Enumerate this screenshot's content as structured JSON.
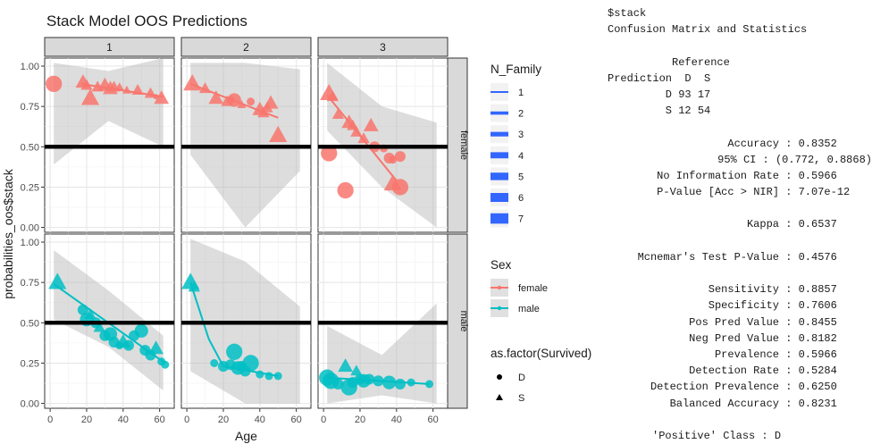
{
  "chart_data": {
    "type": "scatter",
    "title": "Stack Model OOS Predictions",
    "xlabel": "Age",
    "ylabel": "probabilities_oos$stack",
    "xlim": [
      -3,
      68
    ],
    "ylim": [
      -0.03,
      1.05
    ],
    "x_ticks": [
      0,
      20,
      40,
      60
    ],
    "y_ticks": [
      0,
      0.25,
      0.5,
      0.75,
      1.0
    ],
    "y_tick_labels": [
      "0.00",
      "0.25",
      "0.50",
      "0.75",
      "1.00"
    ],
    "hline": 0.5,
    "grid": true,
    "legend_position": "right",
    "col_facets": [
      "1",
      "2",
      "3"
    ],
    "row_facets": [
      "female",
      "male"
    ],
    "colors": {
      "female": "#F8766D",
      "male": "#00BFC4",
      "band": "#b3b3b3",
      "panel": "#ffffff",
      "strip": "#d9d9d9"
    },
    "legend": {
      "n_family_title": "N_Family",
      "n_family_levels": [
        "1",
        "2",
        "3",
        "4",
        "5",
        "6",
        "7"
      ],
      "n_family_color": "#3366FF",
      "sex_title": "Sex",
      "sex_levels": [
        "female",
        "male"
      ],
      "survived_title": "as.factor(Survived)",
      "survived_levels": [
        "D",
        "S"
      ]
    },
    "panels": [
      {
        "row": "female",
        "col": "1",
        "sex": "female",
        "points": [
          [
            2,
            0.89,
            5,
            "D"
          ],
          [
            18,
            0.9,
            4,
            "S"
          ],
          [
            20,
            0.88,
            3,
            "S"
          ],
          [
            22,
            0.8,
            5,
            "S"
          ],
          [
            26,
            0.87,
            3,
            "S"
          ],
          [
            30,
            0.88,
            4,
            "S"
          ],
          [
            33,
            0.86,
            4,
            "S"
          ],
          [
            35,
            0.87,
            3,
            "S"
          ],
          [
            38,
            0.87,
            2,
            "S"
          ],
          [
            42,
            0.85,
            2,
            "S"
          ],
          [
            48,
            0.85,
            3,
            "S"
          ],
          [
            55,
            0.83,
            3,
            "S"
          ],
          [
            58,
            0.81,
            1,
            "D"
          ],
          [
            61,
            0.8,
            4,
            "S"
          ]
        ],
        "fit": [
          [
            17,
            0.89
          ],
          [
            62,
            0.81
          ]
        ],
        "band_lo": [
          0.39,
          0.66,
          0.5
        ],
        "band_hi": [
          1.02,
          0.97,
          1.05
        ]
      },
      {
        "row": "female",
        "col": "2",
        "sex": "female",
        "points": [
          [
            3,
            0.89,
            5,
            "S"
          ],
          [
            10,
            0.86,
            3,
            "S"
          ],
          [
            16,
            0.8,
            4,
            "S"
          ],
          [
            22,
            0.78,
            3,
            "S"
          ],
          [
            24,
            0.79,
            2,
            "D"
          ],
          [
            26,
            0.79,
            4,
            "D"
          ],
          [
            30,
            0.76,
            2,
            "S"
          ],
          [
            35,
            0.78,
            2,
            "D"
          ],
          [
            40,
            0.73,
            4,
            "S"
          ],
          [
            42,
            0.71,
            3,
            "S"
          ],
          [
            44,
            0.74,
            3,
            "S"
          ],
          [
            46,
            0.77,
            4,
            "S"
          ],
          [
            50,
            0.57,
            5,
            "S"
          ]
        ],
        "fit": [
          [
            2,
            0.89
          ],
          [
            50,
            0.68
          ]
        ],
        "band_lo": [
          0.45,
          0.0,
          0.35
        ],
        "band_hi": [
          1.02,
          1.02,
          0.98
        ]
      },
      {
        "row": "female",
        "col": "3",
        "sex": "female",
        "points": [
          [
            3,
            0.83,
            5,
            "S"
          ],
          [
            5,
            0.81,
            3,
            "S"
          ],
          [
            8,
            0.7,
            3,
            "S"
          ],
          [
            14,
            0.65,
            4,
            "S"
          ],
          [
            16,
            0.63,
            3,
            "S"
          ],
          [
            18,
            0.59,
            3,
            "S"
          ],
          [
            22,
            0.55,
            3,
            "S"
          ],
          [
            26,
            0.63,
            4,
            "S"
          ],
          [
            28,
            0.5,
            3,
            "D"
          ],
          [
            33,
            0.49,
            2,
            "D"
          ],
          [
            36,
            0.43,
            3,
            "D"
          ],
          [
            38,
            0.42,
            2,
            "D"
          ],
          [
            42,
            0.44,
            3,
            "D"
          ],
          [
            3,
            0.46,
            5,
            "D"
          ],
          [
            12,
            0.23,
            5,
            "D"
          ],
          [
            38,
            0.27,
            5,
            "S"
          ],
          [
            42,
            0.25,
            5,
            "D"
          ]
        ],
        "fit": [
          [
            2,
            0.82
          ],
          [
            40,
            0.29
          ]
        ],
        "band_lo": [
          0.6,
          0.25,
          0.0
        ],
        "band_hi": [
          1.02,
          0.75,
          0.65
        ]
      },
      {
        "row": "male",
        "col": "1",
        "sex": "male",
        "points": [
          [
            4,
            0.75,
            5,
            "S"
          ],
          [
            18,
            0.58,
            3,
            "D"
          ],
          [
            20,
            0.52,
            4,
            "D"
          ],
          [
            22,
            0.55,
            3,
            "S"
          ],
          [
            25,
            0.5,
            3,
            "D"
          ],
          [
            27,
            0.47,
            3,
            "S"
          ],
          [
            30,
            0.42,
            3,
            "D"
          ],
          [
            33,
            0.43,
            4,
            "D"
          ],
          [
            35,
            0.38,
            3,
            "D"
          ],
          [
            38,
            0.36,
            2,
            "D"
          ],
          [
            40,
            0.38,
            4,
            "S"
          ],
          [
            43,
            0.36,
            3,
            "D"
          ],
          [
            46,
            0.42,
            3,
            "D"
          ],
          [
            50,
            0.45,
            4,
            "D"
          ],
          [
            52,
            0.33,
            3,
            "D"
          ],
          [
            55,
            0.3,
            3,
            "D"
          ],
          [
            58,
            0.34,
            4,
            "S"
          ],
          [
            61,
            0.26,
            2,
            "D"
          ],
          [
            63,
            0.24,
            2,
            "D"
          ]
        ],
        "fit": [
          [
            2,
            0.74
          ],
          [
            63,
            0.25
          ]
        ],
        "band_lo": [
          0.52,
          0.35,
          0.08
        ],
        "band_hi": [
          0.95,
          0.7,
          0.42
        ]
      },
      {
        "row": "male",
        "col": "2",
        "sex": "male",
        "points": [
          [
            2,
            0.75,
            5,
            "S"
          ],
          [
            4,
            0.72,
            3,
            "S"
          ],
          [
            15,
            0.25,
            2,
            "D"
          ],
          [
            20,
            0.23,
            3,
            "D"
          ],
          [
            24,
            0.24,
            3,
            "D"
          ],
          [
            26,
            0.32,
            5,
            "D"
          ],
          [
            28,
            0.22,
            4,
            "D"
          ],
          [
            30,
            0.23,
            3,
            "D"
          ],
          [
            32,
            0.2,
            3,
            "D"
          ],
          [
            35,
            0.25,
            5,
            "D"
          ],
          [
            40,
            0.18,
            2,
            "D"
          ],
          [
            45,
            0.17,
            2,
            "D"
          ],
          [
            50,
            0.17,
            2,
            "D"
          ]
        ],
        "fit": [
          [
            2,
            0.75
          ],
          [
            12,
            0.4
          ],
          [
            20,
            0.23
          ],
          [
            50,
            0.17
          ]
        ],
        "band_lo": [
          0.2,
          0.0,
          0.0
        ],
        "band_hi": [
          1.02,
          0.88,
          0.6
        ]
      },
      {
        "row": "male",
        "col": "3",
        "sex": "male",
        "points": [
          [
            2,
            0.16,
            5,
            "D"
          ],
          [
            4,
            0.14,
            5,
            "D"
          ],
          [
            8,
            0.12,
            3,
            "D"
          ],
          [
            12,
            0.23,
            4,
            "S"
          ],
          [
            14,
            0.1,
            5,
            "D"
          ],
          [
            16,
            0.13,
            3,
            "D"
          ],
          [
            18,
            0.2,
            3,
            "S"
          ],
          [
            20,
            0.15,
            3,
            "D"
          ],
          [
            22,
            0.14,
            4,
            "D"
          ],
          [
            25,
            0.15,
            3,
            "D"
          ],
          [
            30,
            0.14,
            3,
            "D"
          ],
          [
            36,
            0.13,
            4,
            "D"
          ],
          [
            42,
            0.12,
            3,
            "D"
          ],
          [
            48,
            0.13,
            2,
            "D"
          ],
          [
            58,
            0.12,
            2,
            "D"
          ]
        ],
        "fit": [
          [
            2,
            0.16
          ],
          [
            58,
            0.12
          ]
        ],
        "band_lo": [
          0.0,
          0.05,
          0.0
        ],
        "band_hi": [
          0.48,
          0.3,
          0.62
        ]
      }
    ]
  },
  "console": {
    "header1": "$stack",
    "header2": "Confusion Matrix and Statistics",
    "reference_header": "          Reference",
    "prediction_header": "Prediction  D  S",
    "matrix_row_d": "         D 93 17",
    "matrix_row_s": "         S 12 54",
    "stats_a": [
      {
        "label": "Accuracy",
        "value": "0.8352"
      },
      {
        "label": "95% CI",
        "value": "(0.772, 0.8868)"
      },
      {
        "label": "No Information Rate",
        "value": "0.5966"
      },
      {
        "label": "P-Value [Acc > NIR]",
        "value": "7.07e-12"
      }
    ],
    "kappa": {
      "label": "Kappa",
      "value": "0.6537"
    },
    "mcnemar": {
      "label": "Mcnemar's Test P-Value",
      "value": "0.4576"
    },
    "stats_b": [
      {
        "label": "Sensitivity",
        "value": "0.8857"
      },
      {
        "label": "Specificity",
        "value": "0.7606"
      },
      {
        "label": "Pos Pred Value",
        "value": "0.8455"
      },
      {
        "label": "Neg Pred Value",
        "value": "0.8182"
      },
      {
        "label": "Prevalence",
        "value": "0.5966"
      },
      {
        "label": "Detection Rate",
        "value": "0.5284"
      },
      {
        "label": "Detection Prevalence",
        "value": "0.6250"
      },
      {
        "label": "Balanced Accuracy",
        "value": "0.8231"
      }
    ],
    "positive_class": "'Positive' Class : D"
  }
}
